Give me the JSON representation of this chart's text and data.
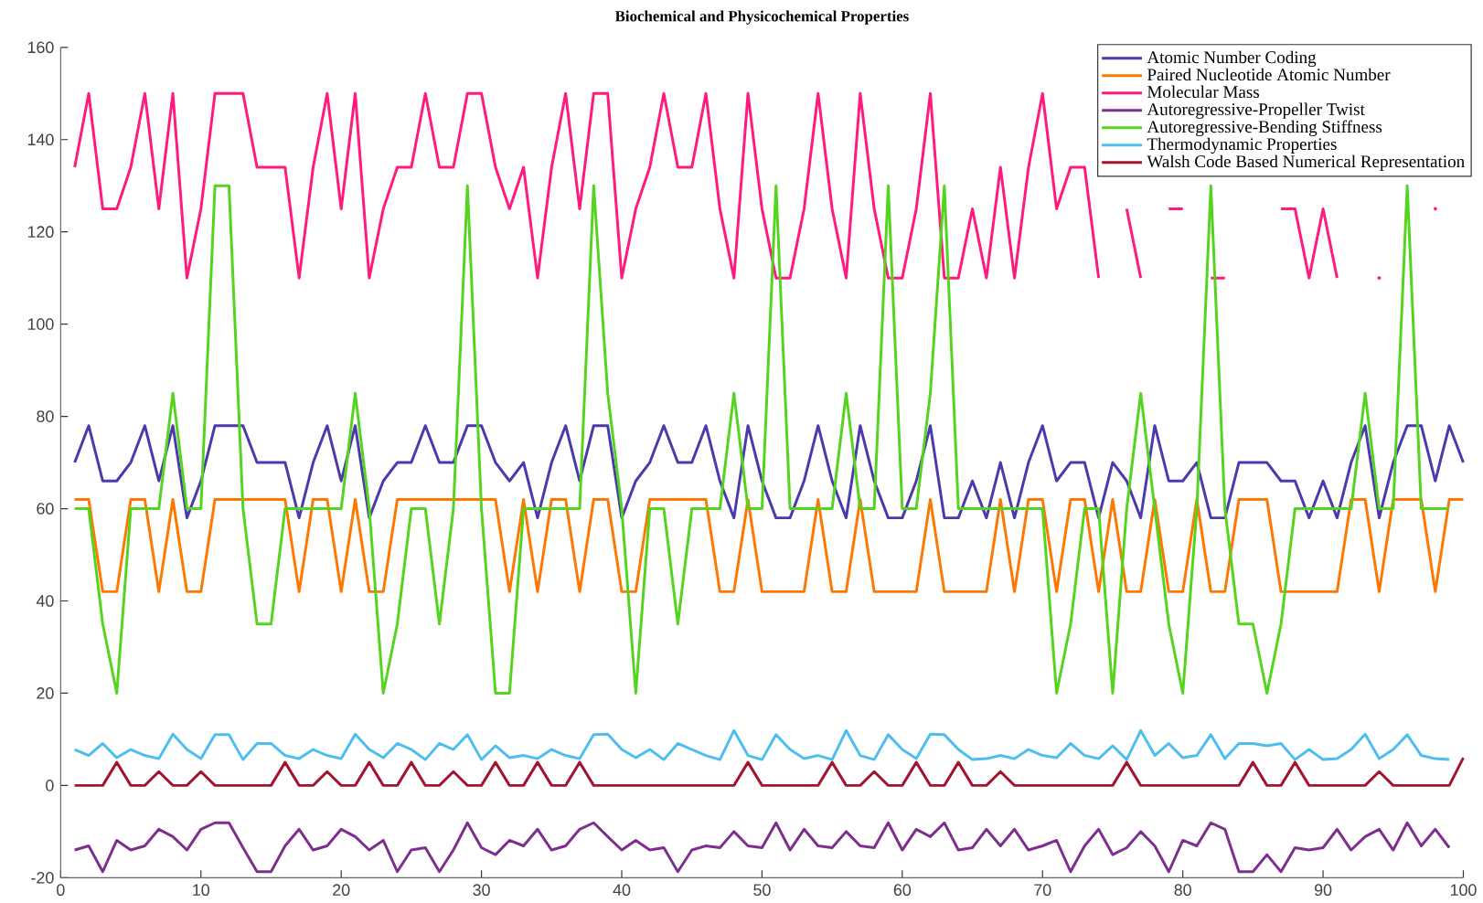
{
  "chart_data": {
    "type": "line",
    "title": "Biochemical and Physicochemical Properties",
    "x": [
      1,
      2,
      3,
      4,
      5,
      6,
      7,
      8,
      9,
      10,
      11,
      12,
      13,
      14,
      15,
      16,
      17,
      18,
      19,
      20,
      21,
      22,
      23,
      24,
      25,
      26,
      27,
      28,
      29,
      30,
      31,
      32,
      33,
      34,
      35,
      36,
      37,
      38,
      39,
      40,
      41,
      42,
      43,
      44,
      45,
      46,
      47,
      48,
      49,
      50,
      51,
      52,
      53,
      54,
      55,
      56,
      57,
      58,
      59,
      60,
      61,
      62,
      63,
      64,
      65,
      66,
      67,
      68,
      69,
      70,
      71,
      72,
      73,
      74,
      75,
      76,
      77,
      78,
      79,
      80,
      81,
      82,
      83,
      84,
      85,
      86,
      87,
      88,
      89,
      90,
      91,
      92,
      93,
      94,
      95,
      96,
      97,
      98,
      99,
      100
    ],
    "xlim": [
      0,
      100
    ],
    "xticks": [
      0,
      10,
      20,
      30,
      40,
      50,
      60,
      70,
      80,
      90,
      100
    ],
    "ylim": [
      -20,
      160
    ],
    "yticks": [
      -20,
      0,
      20,
      40,
      60,
      80,
      100,
      120,
      140,
      160
    ],
    "legend": "top right",
    "series": [
      {
        "name": "Atomic Number Coding",
        "color": "#4b3aad",
        "values": [
          70,
          78,
          66,
          66,
          70,
          78,
          66,
          78,
          58,
          66,
          78,
          78,
          78,
          70,
          70,
          70,
          58,
          70,
          78,
          66,
          78,
          58,
          66,
          70,
          70,
          78,
          70,
          70,
          78,
          78,
          70,
          66,
          70,
          58,
          70,
          78,
          66,
          78,
          78,
          58,
          66,
          70,
          78,
          70,
          70,
          78,
          66,
          58,
          78,
          66,
          58,
          58,
          66,
          78,
          66,
          58,
          78,
          66,
          58,
          58,
          66,
          78,
          58,
          58,
          66,
          58,
          70,
          58,
          70,
          78,
          66,
          70,
          70,
          58,
          70,
          66,
          58,
          78,
          66,
          66,
          70,
          58,
          58,
          70,
          70,
          70,
          66,
          66,
          58,
          66,
          58,
          70,
          78,
          58,
          70,
          78,
          78,
          66,
          78,
          70
        ]
      },
      {
        "name": "Paired Nucleotide Atomic Number",
        "color": "#ff7700",
        "values": [
          62,
          62,
          42,
          42,
          62,
          62,
          42,
          62,
          42,
          42,
          62,
          62,
          62,
          62,
          62,
          62,
          42,
          62,
          62,
          42,
          62,
          42,
          42,
          62,
          62,
          62,
          62,
          62,
          62,
          62,
          62,
          42,
          62,
          42,
          62,
          62,
          42,
          62,
          62,
          42,
          42,
          62,
          62,
          62,
          62,
          62,
          42,
          42,
          62,
          42,
          42,
          42,
          42,
          62,
          42,
          42,
          62,
          42,
          42,
          42,
          42,
          62,
          42,
          42,
          42,
          42,
          62,
          42,
          62,
          62,
          42,
          62,
          62,
          42,
          62,
          42,
          42,
          62,
          42,
          42,
          62,
          42,
          42,
          62,
          62,
          62,
          42,
          42,
          42,
          42,
          42,
          62,
          62,
          42,
          62,
          62,
          62,
          42,
          62,
          62
        ]
      },
      {
        "name": "Molecular Mass",
        "color": "#ff1a7d",
        "values": [
          134,
          150,
          125,
          125,
          134,
          150,
          125,
          150,
          110,
          125,
          150,
          150,
          150,
          134,
          134,
          134,
          110,
          134,
          150,
          125,
          150,
          110,
          125,
          134,
          134,
          150,
          134,
          134,
          150,
          150,
          134,
          125,
          134,
          110,
          134,
          150,
          125,
          150,
          150,
          110,
          125,
          134,
          150,
          134,
          134,
          150,
          125,
          110,
          150,
          125,
          110,
          110,
          125,
          150,
          125,
          110,
          150,
          125,
          110,
          110,
          125,
          150,
          110,
          110,
          125,
          110,
          134,
          110,
          134,
          150,
          125,
          134,
          134,
          110,
          null,
          125,
          110,
          null,
          125,
          125,
          null,
          110,
          110,
          null,
          null,
          null,
          125,
          125,
          110,
          125,
          110,
          null,
          null,
          110,
          null,
          null,
          null,
          125,
          null,
          null
        ]
      },
      {
        "name": "Autoregressive-Propeller Twist",
        "color": "#7e2f8e",
        "x": [
          1,
          2,
          3,
          4,
          5,
          6,
          7,
          8,
          9,
          10,
          11,
          12,
          13,
          14,
          15,
          16,
          17,
          18,
          19,
          20,
          21,
          22,
          23,
          24,
          25,
          26,
          27,
          28,
          29,
          30,
          31,
          32,
          33,
          34,
          35,
          36,
          37,
          38,
          39,
          40,
          41,
          42,
          43,
          44,
          45,
          46,
          47,
          48,
          49,
          50,
          51,
          52,
          53,
          54,
          55,
          56,
          57,
          58,
          59,
          60,
          61,
          62,
          63,
          64,
          65,
          66,
          67,
          68,
          69,
          70,
          71,
          72,
          73,
          74,
          75,
          76,
          77,
          78,
          79,
          80,
          81,
          82,
          83,
          84,
          85,
          86,
          87,
          88,
          89,
          90,
          91,
          92,
          93,
          94,
          95,
          96,
          97,
          98,
          99
        ],
        "values": [
          -14.0,
          -13.1,
          -18.7,
          -11.9,
          -14.0,
          -13.1,
          -9.5,
          -11.1,
          -14.0,
          -9.5,
          -8.1,
          -8.1,
          -13.5,
          -18.7,
          -18.7,
          -13.1,
          -9.5,
          -14.0,
          -13.1,
          -9.5,
          -11.1,
          -14.0,
          -11.9,
          -18.7,
          -14.0,
          -13.5,
          -18.7,
          -14.0,
          -8.1,
          -13.5,
          -15.0,
          -11.9,
          -13.1,
          -9.5,
          -14.0,
          -13.1,
          -9.5,
          -8.1,
          -11.1,
          -14.0,
          -11.9,
          -14.0,
          -13.5,
          -18.7,
          -14.0,
          -13.1,
          -13.5,
          -10.0,
          -13.1,
          -13.5,
          -8.1,
          -14.0,
          -9.5,
          -13.1,
          -13.5,
          -10.0,
          -13.1,
          -13.5,
          -8.1,
          -14.0,
          -9.5,
          -11.1,
          -8.1,
          -14.0,
          -13.5,
          -9.5,
          -13.1,
          -9.5,
          -14.0,
          -13.1,
          -11.9,
          -18.7,
          -13.1,
          -9.5,
          -15.0,
          -13.5,
          -10.0,
          -13.1,
          -18.7,
          -11.9,
          -13.1,
          -8.1,
          -9.5,
          -18.7,
          -18.7,
          -15.0,
          -18.7,
          -13.5,
          -14.0,
          -13.5,
          -9.5,
          -14.0,
          -11.1,
          -9.5,
          -14.0,
          -8.1,
          -13.1,
          -9.5,
          -13.5
        ]
      },
      {
        "name": "Autoregressive-Bending Stiffness",
        "color": "#55d41f",
        "x": [
          1,
          2,
          3,
          4,
          5,
          6,
          7,
          8,
          9,
          10,
          11,
          12,
          13,
          14,
          15,
          16,
          17,
          18,
          19,
          20,
          21,
          22,
          23,
          24,
          25,
          26,
          27,
          28,
          29,
          30,
          31,
          32,
          33,
          34,
          35,
          36,
          37,
          38,
          39,
          40,
          41,
          42,
          43,
          44,
          45,
          46,
          47,
          48,
          49,
          50,
          51,
          52,
          53,
          54,
          55,
          56,
          57,
          58,
          59,
          60,
          61,
          62,
          63,
          64,
          65,
          66,
          67,
          68,
          69,
          70,
          71,
          72,
          73,
          74,
          75,
          76,
          77,
          78,
          79,
          80,
          81,
          82,
          83,
          84,
          85,
          86,
          87,
          88,
          89,
          90,
          91,
          92,
          93,
          94,
          95,
          96,
          97,
          98,
          99
        ],
        "values": [
          60,
          60,
          35,
          20,
          60,
          60,
          60,
          85,
          60,
          60,
          130,
          130,
          60,
          35,
          35,
          60,
          60,
          60,
          60,
          60,
          85,
          60,
          20,
          35,
          60,
          60,
          35,
          60,
          130,
          60,
          20,
          20,
          60,
          60,
          60,
          60,
          60,
          130,
          85,
          60,
          20,
          60,
          60,
          35,
          60,
          60,
          60,
          85,
          60,
          60,
          130,
          60,
          60,
          60,
          60,
          85,
          60,
          60,
          130,
          60,
          60,
          85,
          130,
          60,
          60,
          60,
          60,
          60,
          60,
          60,
          20,
          35,
          60,
          60,
          20,
          60,
          85,
          60,
          35,
          20,
          60,
          130,
          60,
          35,
          35,
          20,
          35,
          60,
          60,
          60,
          60,
          60,
          85,
          60,
          60,
          130,
          60,
          60,
          60
        ]
      },
      {
        "name": "Thermodynamic Properties",
        "color": "#4dbeee",
        "x": [
          1,
          2,
          3,
          4,
          5,
          6,
          7,
          8,
          9,
          10,
          11,
          12,
          13,
          14,
          15,
          16,
          17,
          18,
          19,
          20,
          21,
          22,
          23,
          24,
          25,
          26,
          27,
          28,
          29,
          30,
          31,
          32,
          33,
          34,
          35,
          36,
          37,
          38,
          39,
          40,
          41,
          42,
          43,
          44,
          45,
          46,
          47,
          48,
          49,
          50,
          51,
          52,
          53,
          54,
          55,
          56,
          57,
          58,
          59,
          60,
          61,
          62,
          63,
          64,
          65,
          66,
          67,
          68,
          69,
          70,
          71,
          72,
          73,
          74,
          75,
          76,
          77,
          78,
          79,
          80,
          81,
          82,
          83,
          84,
          85,
          86,
          87,
          88,
          89,
          90,
          91,
          92,
          93,
          94,
          95,
          96,
          97,
          98,
          99
        ],
        "values": [
          7.8,
          6.5,
          9.1,
          6.0,
          7.8,
          6.5,
          5.8,
          11.1,
          7.8,
          5.8,
          11.0,
          11.0,
          5.6,
          9.1,
          9.1,
          6.5,
          5.8,
          7.8,
          6.5,
          5.8,
          11.1,
          7.8,
          6.0,
          9.1,
          7.8,
          5.6,
          9.1,
          7.8,
          11.0,
          5.6,
          8.6,
          6.0,
          6.5,
          5.8,
          7.8,
          6.5,
          5.8,
          11.0,
          11.1,
          7.8,
          6.0,
          7.8,
          5.6,
          9.1,
          7.8,
          6.5,
          5.6,
          11.9,
          6.5,
          5.6,
          11.0,
          7.8,
          5.8,
          6.5,
          5.6,
          11.9,
          6.5,
          5.6,
          11.0,
          7.8,
          5.8,
          11.1,
          11.0,
          7.8,
          5.6,
          5.8,
          6.5,
          5.8,
          7.8,
          6.5,
          6.0,
          9.1,
          6.5,
          5.8,
          8.6,
          5.6,
          11.9,
          6.5,
          9.1,
          6.0,
          6.5,
          11.0,
          5.8,
          9.1,
          9.1,
          8.6,
          9.1,
          5.6,
          7.8,
          5.6,
          5.8,
          7.8,
          11.1,
          5.8,
          7.8,
          11.0,
          6.5,
          5.8,
          5.6
        ]
      },
      {
        "name": "Walsh Code Based Numerical Representation",
        "color": "#a2142f",
        "values": [
          0,
          0,
          0,
          5,
          0,
          0,
          3,
          0,
          0,
          3,
          0,
          0,
          0,
          0,
          0,
          5,
          0,
          0,
          3,
          0,
          0,
          5,
          0,
          0,
          5,
          0,
          0,
          3,
          0,
          0,
          5,
          0,
          0,
          5,
          0,
          0,
          5,
          0,
          0,
          0,
          0,
          0,
          0,
          0,
          0,
          0,
          0,
          0,
          5,
          0,
          0,
          0,
          0,
          0,
          5,
          0,
          0,
          3,
          0,
          0,
          5,
          0,
          0,
          5,
          0,
          0,
          3,
          0,
          0,
          0,
          0,
          0,
          0,
          0,
          0,
          5,
          0,
          0,
          0,
          0,
          0,
          0,
          0,
          0,
          5,
          0,
          0,
          5,
          0,
          0,
          0,
          0,
          0,
          3,
          0,
          0,
          0,
          0,
          0,
          6
        ]
      }
    ]
  }
}
